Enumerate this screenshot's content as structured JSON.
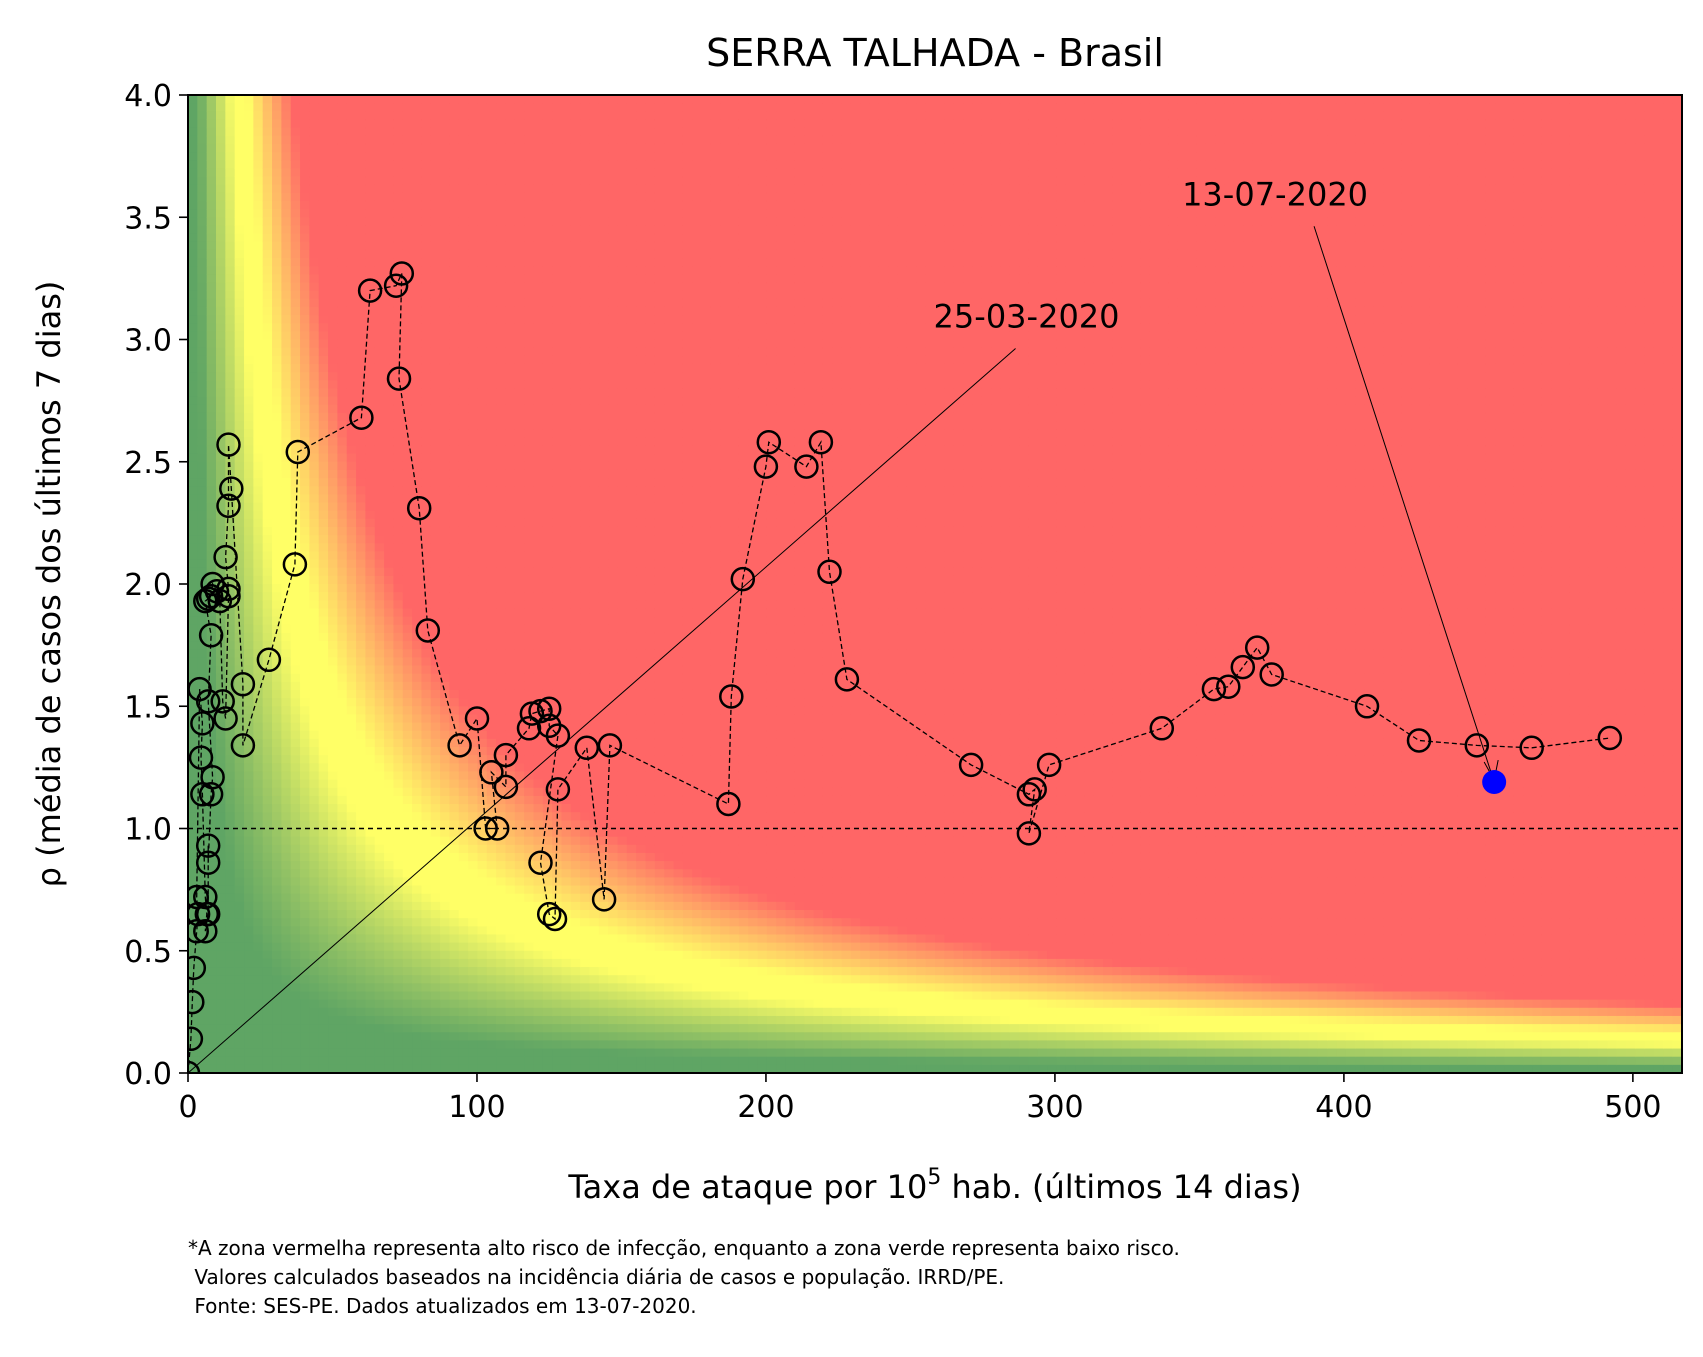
{
  "chart_data": {
    "type": "scatter",
    "title": "SERRA TALHADA - Brasil",
    "xlabel_pre": "Taxa de ataque por 10",
    "xlabel_sup": "5",
    "xlabel_post": " hab. (últimos 14 dias)",
    "ylabel": "ρ (média de casos dos últimos 7 dias)",
    "xlim": [
      0,
      517
    ],
    "ylim": [
      0,
      4.0
    ],
    "x_ticks": [
      0,
      100,
      200,
      300,
      400,
      500
    ],
    "y_ticks": [
      0.0,
      0.5,
      1.0,
      1.5,
      2.0,
      2.5,
      3.0,
      3.5,
      4.0
    ],
    "reference_line_y": 1.0,
    "background": "risk heatmap: green (low risk) → yellow → red (high risk), boundary along rho × rate ≈ constant",
    "colors": {
      "low": "#5fa864",
      "mid": "#ffff66",
      "high": "#ff6666",
      "marker_edge": "#000000",
      "current": "#0000ff"
    },
    "grid": false,
    "legend": "none",
    "series": [
      {
        "points": [
          [
            0.0,
            0.0
          ],
          [
            1,
            0.14
          ],
          [
            1.5,
            0.29
          ],
          [
            2,
            0.43
          ],
          [
            3,
            0.58
          ],
          [
            3.5,
            0.65
          ],
          [
            3,
            0.72
          ],
          [
            4,
            1.57
          ],
          [
            5,
            1.43
          ],
          [
            4.5,
            1.29
          ],
          [
            5,
            1.14
          ],
          [
            6,
            0.72
          ],
          [
            6.5,
            0.65
          ],
          [
            6,
            0.58
          ],
          [
            7,
            0.65
          ],
          [
            7,
            0.93
          ],
          [
            7,
            0.86
          ],
          [
            8,
            1.14
          ],
          [
            8.5,
            1.21
          ],
          [
            7,
            1.52
          ],
          [
            8,
            1.79
          ],
          [
            6,
            1.93
          ],
          [
            7,
            1.94
          ],
          [
            8,
            1.95
          ],
          [
            8.5,
            2.0
          ],
          [
            10,
            1.97
          ],
          [
            11,
            1.93
          ],
          [
            12,
            1.52
          ],
          [
            13,
            1.45
          ],
          [
            14,
            1.95
          ],
          [
            14,
            1.98
          ],
          [
            13,
            2.11
          ],
          [
            14,
            2.32
          ],
          [
            14,
            2.57
          ],
          [
            15,
            2.39
          ],
          [
            19,
            1.59
          ],
          [
            19,
            1.34
          ],
          [
            28,
            1.69
          ],
          [
            37,
            2.08
          ],
          [
            38,
            2.54
          ],
          [
            60,
            2.68
          ],
          [
            63,
            3.2
          ],
          [
            72,
            3.22
          ],
          [
            74,
            3.27
          ],
          [
            73,
            2.84
          ],
          [
            80,
            2.31
          ],
          [
            83,
            1.81
          ],
          [
            94,
            1.34
          ],
          [
            100,
            1.45
          ],
          [
            103,
            1.0
          ],
          [
            107,
            1.0
          ],
          [
            105,
            1.23
          ],
          [
            110,
            1.17
          ],
          [
            110,
            1.3
          ],
          [
            118,
            1.41
          ],
          [
            119,
            1.47
          ],
          [
            122,
            1.48
          ],
          [
            125,
            1.49
          ],
          [
            125,
            1.42
          ],
          [
            128,
            1.38
          ],
          [
            122,
            0.86
          ],
          [
            125,
            0.65
          ],
          [
            127,
            0.63
          ],
          [
            128,
            1.16
          ],
          [
            138,
            1.33
          ],
          [
            144,
            0.71
          ],
          [
            146,
            1.34
          ],
          [
            187,
            1.1
          ],
          [
            188,
            1.54
          ],
          [
            192,
            2.02
          ],
          [
            200,
            2.48
          ],
          [
            201,
            2.58
          ],
          [
            214,
            2.48
          ],
          [
            219,
            2.58
          ],
          [
            222,
            2.05
          ],
          [
            228,
            1.61
          ],
          [
            271,
            1.26
          ],
          [
            291,
            1.14
          ],
          [
            293,
            1.16
          ],
          [
            291,
            0.98
          ],
          [
            298,
            1.26
          ],
          [
            337,
            1.41
          ],
          [
            355,
            1.57
          ],
          [
            360,
            1.58
          ],
          [
            365,
            1.66
          ],
          [
            370,
            1.74
          ],
          [
            375,
            1.63
          ],
          [
            408,
            1.5
          ],
          [
            426,
            1.36
          ],
          [
            446,
            1.34
          ],
          [
            465,
            1.33
          ],
          [
            492,
            1.37
          ]
        ]
      }
    ],
    "current_point": [
      452,
      1.19
    ],
    "annotations": [
      {
        "text": "25-03-2020",
        "point": [
          0.0,
          0.0
        ],
        "text_pos": [
          258,
          3.0
        ]
      },
      {
        "text": "13-07-2020",
        "point": [
          452,
          1.19
        ],
        "text_pos": [
          344,
          3.5
        ]
      }
    ]
  },
  "footnote": {
    "line1": "*A zona vermelha representa alto risco de infecção, enquanto a zona verde representa baixo risco.",
    "line2": " Valores calculados baseados na incidência diária de casos e população. IRRD/PE.",
    "line3": " Fonte: SES-PE. Dados atualizados em 13-07-2020."
  }
}
